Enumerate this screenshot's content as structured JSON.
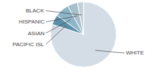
{
  "chart_data": {
    "type": "pie",
    "categories": [
      "WHITE",
      "PACIFIC ISL",
      "ASIAN",
      "HISPANIC",
      "BLACK"
    ],
    "values": [
      80,
      5,
      7,
      5,
      3
    ],
    "colors": [
      "#d4dce5",
      "#5b8fa8",
      "#8bb5c8",
      "#a8c0cc",
      "#c2d0d8"
    ]
  }
}
